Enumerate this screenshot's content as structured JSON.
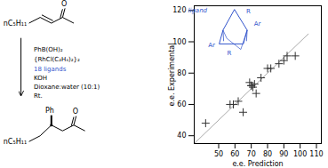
{
  "chart_data": {
    "type": "scatter",
    "xlabel": "e.e. Prediction",
    "ylabel": "e.e. Experimental",
    "x": [
      42,
      57,
      59,
      62,
      65,
      69,
      70,
      70,
      71,
      72,
      73,
      76,
      80,
      82,
      87,
      90,
      92,
      97
    ],
    "values": [
      48,
      60,
      60,
      62,
      55,
      74,
      72,
      72,
      71,
      73,
      67,
      77,
      83,
      83,
      86,
      88,
      91,
      91
    ],
    "color": "#333333",
    "marker": "plus",
    "reference_line": {
      "x": [
        35,
        105
      ],
      "values": [
        35,
        105
      ],
      "color": "#aaaaaa"
    },
    "xlim": [
      35,
      113
    ],
    "ylim": [
      35,
      123
    ],
    "xticks": [
      50,
      60,
      70,
      80,
      90,
      100,
      110
    ],
    "yticks": [
      40,
      60,
      80,
      100,
      120
    ],
    "grid": false,
    "annotations": [
      {
        "text": "nC₅H₁₁",
        "color": "#000000"
      },
      {
        "text": "O",
        "color": "#000000"
      },
      {
        "text": "PhB(OH)₂",
        "color": "#000000"
      },
      {
        "text": "{RhCl(C₂H₄)₂}₂",
        "color": "#000000"
      },
      {
        "text": "18 ligands",
        "color": "#3355cc"
      },
      {
        "text": "KOH",
        "color": "#000000"
      },
      {
        "text": "Dioxane:water (10:1)",
        "color": "#000000"
      },
      {
        "text": "Rt.",
        "color": "#000000"
      },
      {
        "text": "nC₅H₁₁",
        "color": "#000000"
      },
      {
        "text": "Ph",
        "color": "#000000"
      },
      {
        "text": "O",
        "color": "#000000"
      },
      {
        "text": "ligand",
        "color": "#3355cc"
      },
      {
        "text": "R",
        "color": "#3355cc"
      },
      {
        "text": "Ar",
        "color": "#3355cc"
      },
      {
        "text": "Ar",
        "color": "#3355cc"
      },
      {
        "text": "R",
        "color": "#3355cc"
      }
    ]
  }
}
